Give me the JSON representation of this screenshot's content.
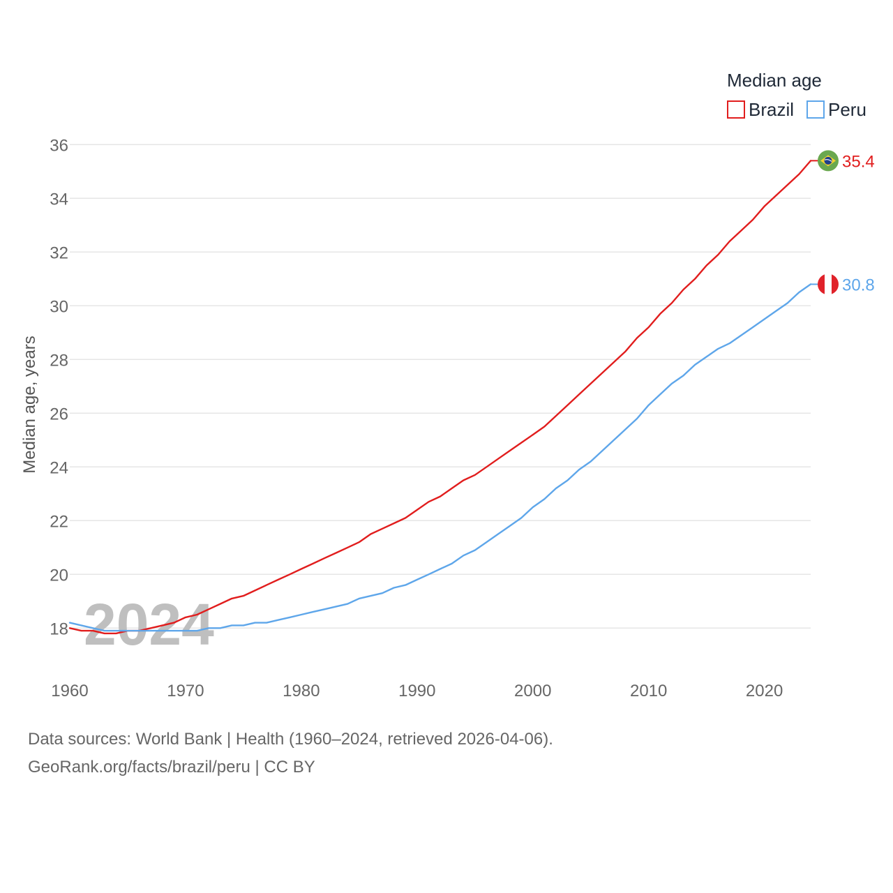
{
  "chart_data": {
    "type": "line",
    "legend_title": "Median age",
    "ylabel": "Median age, years",
    "xlabel": "",
    "xlim": [
      1960,
      2024
    ],
    "ylim": [
      16.5,
      36.5
    ],
    "y_ticks": [
      18,
      20,
      22,
      24,
      26,
      28,
      30,
      32,
      34,
      36
    ],
    "x_ticks": [
      1960,
      1970,
      1980,
      1990,
      2000,
      2010,
      2020
    ],
    "grid": true,
    "legend_position": "top-right",
    "current_year": "2024",
    "x": [
      1960,
      1961,
      1962,
      1963,
      1964,
      1965,
      1966,
      1967,
      1968,
      1969,
      1970,
      1971,
      1972,
      1973,
      1974,
      1975,
      1976,
      1977,
      1978,
      1979,
      1980,
      1981,
      1982,
      1983,
      1984,
      1985,
      1986,
      1987,
      1988,
      1989,
      1990,
      1991,
      1992,
      1993,
      1994,
      1995,
      1996,
      1997,
      1998,
      1999,
      2000,
      2001,
      2002,
      2003,
      2004,
      2005,
      2006,
      2007,
      2008,
      2009,
      2010,
      2011,
      2012,
      2013,
      2014,
      2015,
      2016,
      2017,
      2018,
      2019,
      2020,
      2021,
      2022,
      2023,
      2024
    ],
    "series": [
      {
        "name": "Brazil",
        "color": "#e11d1d",
        "end_label": "35.4",
        "flag_icon": "brazil-flag-icon",
        "values": [
          18.0,
          17.9,
          17.9,
          17.8,
          17.8,
          17.9,
          17.9,
          18.0,
          18.1,
          18.2,
          18.4,
          18.5,
          18.7,
          18.9,
          19.1,
          19.2,
          19.4,
          19.6,
          19.8,
          20.0,
          20.2,
          20.4,
          20.6,
          20.8,
          21.0,
          21.2,
          21.5,
          21.7,
          21.9,
          22.1,
          22.4,
          22.7,
          22.9,
          23.2,
          23.5,
          23.7,
          24.0,
          24.3,
          24.6,
          24.9,
          25.2,
          25.5,
          25.9,
          26.3,
          26.7,
          27.1,
          27.5,
          27.9,
          28.3,
          28.8,
          29.2,
          29.7,
          30.1,
          30.6,
          31.0,
          31.5,
          31.9,
          32.4,
          32.8,
          33.2,
          33.7,
          34.1,
          34.5,
          34.9,
          35.4
        ]
      },
      {
        "name": "Peru",
        "color": "#5ea6ea",
        "end_label": "30.8",
        "flag_icon": "peru-flag-icon",
        "values": [
          18.2,
          18.1,
          18.0,
          17.9,
          17.9,
          17.9,
          17.9,
          17.9,
          17.9,
          17.9,
          17.9,
          17.9,
          18.0,
          18.0,
          18.1,
          18.1,
          18.2,
          18.2,
          18.3,
          18.4,
          18.5,
          18.6,
          18.7,
          18.8,
          18.9,
          19.1,
          19.2,
          19.3,
          19.5,
          19.6,
          19.8,
          20.0,
          20.2,
          20.4,
          20.7,
          20.9,
          21.2,
          21.5,
          21.8,
          22.1,
          22.5,
          22.8,
          23.2,
          23.5,
          23.9,
          24.2,
          24.6,
          25.0,
          25.4,
          25.8,
          26.3,
          26.7,
          27.1,
          27.4,
          27.8,
          28.1,
          28.4,
          28.6,
          28.9,
          29.2,
          29.5,
          29.8,
          30.1,
          30.5,
          30.8
        ]
      }
    ]
  },
  "source": {
    "line1": "Data sources: World Bank | Health (1960–2024, retrieved 2026-04-06).",
    "line2": "GeoRank.org/facts/brazil/peru | CC BY"
  }
}
